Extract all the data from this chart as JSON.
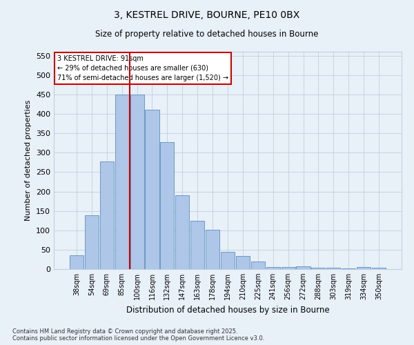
{
  "title1": "3, KESTREL DRIVE, BOURNE, PE10 0BX",
  "title2": "Size of property relative to detached houses in Bourne",
  "xlabel": "Distribution of detached houses by size in Bourne",
  "ylabel": "Number of detached properties",
  "categories": [
    "38sqm",
    "54sqm",
    "69sqm",
    "85sqm",
    "100sqm",
    "116sqm",
    "132sqm",
    "147sqm",
    "163sqm",
    "178sqm",
    "194sqm",
    "210sqm",
    "225sqm",
    "241sqm",
    "256sqm",
    "272sqm",
    "288sqm",
    "303sqm",
    "319sqm",
    "334sqm",
    "350sqm"
  ],
  "values": [
    35,
    138,
    278,
    450,
    450,
    410,
    328,
    190,
    125,
    102,
    45,
    33,
    20,
    6,
    5,
    8,
    4,
    4,
    2,
    5,
    3
  ],
  "bar_color": "#aec6e8",
  "bar_edge_color": "#5a8fc0",
  "vline_x": 3.5,
  "annotation_text1": "3 KESTREL DRIVE: 91sqm",
  "annotation_text2": "← 29% of detached houses are smaller (630)",
  "annotation_text3": "71% of semi-detached houses are larger (1,520) →",
  "annotation_box_color": "#ffffff",
  "annotation_box_edge": "#cc0000",
  "vline_color": "#cc0000",
  "grid_color": "#c0d0e0",
  "bg_color": "#e8f0f8",
  "ylim": [
    0,
    560
  ],
  "yticks": [
    0,
    50,
    100,
    150,
    200,
    250,
    300,
    350,
    400,
    450,
    500,
    550
  ],
  "footer1": "Contains HM Land Registry data © Crown copyright and database right 2025.",
  "footer2": "Contains public sector information licensed under the Open Government Licence v3.0."
}
